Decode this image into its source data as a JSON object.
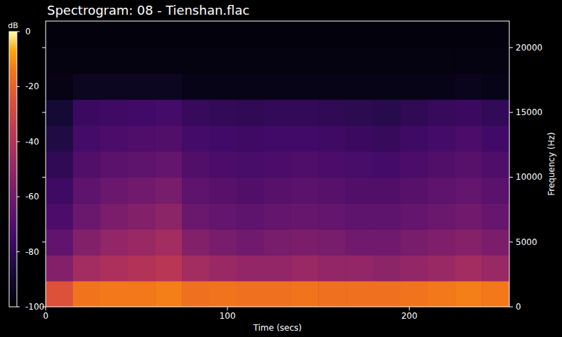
{
  "chart_data": {
    "type": "heatmap",
    "title": "Spectrogram: 08 - Tienshan.flac",
    "x_label": "Time (secs)",
    "y_label": "Frequency (Hz)",
    "xlim": [
      0,
      255
    ],
    "xticks": [
      0,
      100,
      200
    ],
    "ylim": [
      0,
      22050
    ],
    "yticks": [
      0,
      5000,
      10000,
      15000,
      20000
    ],
    "time_bins": [
      0,
      15,
      30,
      45,
      60,
      75,
      90,
      105,
      120,
      135,
      150,
      165,
      180,
      195,
      210,
      225,
      240,
      255
    ],
    "frequency_bins": [
      0,
      2000,
      4000,
      6000,
      8000,
      10000,
      12000,
      14000,
      16000,
      18000,
      20000,
      22050
    ],
    "cells": [
      [
        -25,
        -15,
        -14,
        -14,
        -13,
        -16,
        -15,
        -16,
        -16,
        -15,
        -16,
        -16,
        -16,
        -15,
        -14,
        -13,
        -14
      ],
      [
        -55,
        -45,
        -42,
        -40,
        -38,
        -45,
        -48,
        -50,
        -50,
        -48,
        -50,
        -50,
        -52,
        -50,
        -48,
        -45,
        -48
      ],
      [
        -65,
        -55,
        -50,
        -48,
        -45,
        -55,
        -58,
        -60,
        -58,
        -57,
        -58,
        -60,
        -60,
        -58,
        -56,
        -54,
        -57
      ],
      [
        -72,
        -62,
        -57,
        -55,
        -52,
        -62,
        -64,
        -66,
        -64,
        -63,
        -64,
        -66,
        -66,
        -64,
        -62,
        -60,
        -63
      ],
      [
        -76,
        -66,
        -62,
        -60,
        -58,
        -66,
        -68,
        -70,
        -68,
        -67,
        -68,
        -70,
        -70,
        -68,
        -66,
        -64,
        -67
      ],
      [
        -80,
        -70,
        -67,
        -66,
        -64,
        -70,
        -72,
        -73,
        -72,
        -71,
        -72,
        -73,
        -74,
        -72,
        -70,
        -68,
        -71
      ],
      [
        -84,
        -74,
        -72,
        -71,
        -70,
        -74,
        -75,
        -76,
        -75,
        -75,
        -76,
        -77,
        -78,
        -76,
        -74,
        -72,
        -75
      ],
      [
        -88,
        -77,
        -76,
        -75,
        -74,
        -78,
        -79,
        -80,
        -79,
        -79,
        -80,
        -81,
        -82,
        -80,
        -78,
        -77,
        -79
      ],
      [
        -96,
        -93,
        -93,
        -93,
        -93,
        -95,
        -95,
        -95,
        -95,
        -95,
        -95,
        -95,
        -95,
        -95,
        -95,
        -94,
        -95
      ],
      [
        -97,
        -97,
        -97,
        -97,
        -97,
        -97,
        -97,
        -97,
        -97,
        -97,
        -97,
        -97,
        -97,
        -97,
        -97,
        -97,
        -97
      ],
      [
        -98,
        -98,
        -98,
        -98,
        -98,
        -98,
        -98,
        -98,
        -98,
        -98,
        -98,
        -98,
        -98,
        -98,
        -98,
        -98,
        -98
      ]
    ],
    "zlim": [
      -100,
      0
    ],
    "zticks": [
      0,
      -20,
      -40,
      -60,
      -80,
      -100
    ],
    "zlabel": "dB"
  }
}
